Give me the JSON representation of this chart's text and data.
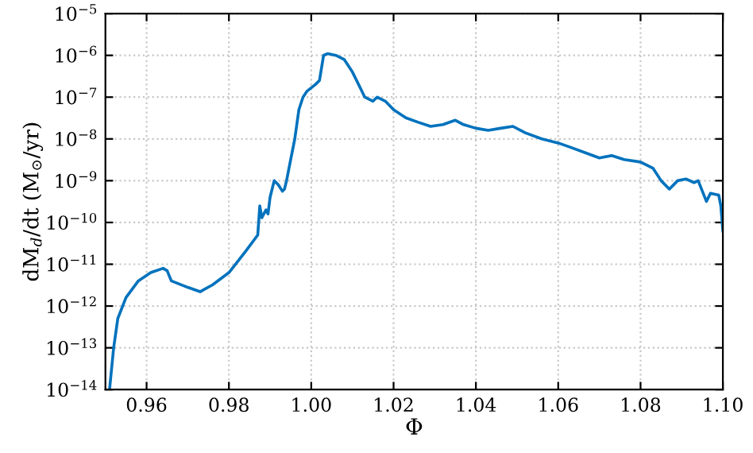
{
  "chart_data": {
    "type": "line",
    "xlabel": "Φ",
    "ylabel": "dM$_{d}$/dt (M$_{⊙}$/yr)",
    "log": "y",
    "grid": true,
    "line_style": "solid",
    "marker": "none",
    "xlim": [
      0.95,
      1.1
    ],
    "xticks": [
      {
        "value": 0.96,
        "label": "0.96"
      },
      {
        "value": 0.98,
        "label": "0.98"
      },
      {
        "value": 1.0,
        "label": "1.00"
      },
      {
        "value": 1.02,
        "label": "1.02"
      },
      {
        "value": 1.04,
        "label": "1.04"
      },
      {
        "value": 1.06,
        "label": "1.06"
      },
      {
        "value": 1.08,
        "label": "1.08"
      },
      {
        "value": 1.1,
        "label": "1.10"
      }
    ],
    "ylim": [
      1e-14,
      1e-05
    ],
    "yticks": [
      {
        "value": 1e-14,
        "label": "10$^{−14}$"
      },
      {
        "value": 1e-13,
        "label": "10$^{−13}$"
      },
      {
        "value": 1e-12,
        "label": "10$^{−12}$"
      },
      {
        "value": 1e-11,
        "label": "10$^{−11}$"
      },
      {
        "value": 1e-10,
        "label": "10$^{−10}$"
      },
      {
        "value": 1e-09,
        "label": "10$^{−9}$"
      },
      {
        "value": 1e-08,
        "label": "10$^{−8}$"
      },
      {
        "value": 1e-07,
        "label": "10$^{−7}$"
      },
      {
        "value": 1e-06,
        "label": "10$^{−6}$"
      },
      {
        "value": 1e-05,
        "label": "10$^{−5}$"
      }
    ],
    "series": [
      {
        "color": "#0072bd",
        "x": [
          0.951,
          0.952,
          0.953,
          0.955,
          0.958,
          0.961,
          0.964,
          0.965,
          0.966,
          0.97,
          0.973,
          0.976,
          0.98,
          0.984,
          0.987,
          0.9875,
          0.988,
          0.989,
          0.9895,
          0.99,
          0.991,
          0.992,
          0.993,
          0.9935,
          0.994,
          0.995,
          0.996,
          0.997,
          0.998,
          0.999,
          1.001,
          1.002,
          1.003,
          1.004,
          1.006,
          1.008,
          1.01,
          1.012,
          1.013,
          1.015,
          1.016,
          1.018,
          1.02,
          1.023,
          1.026,
          1.029,
          1.032,
          1.035,
          1.037,
          1.04,
          1.043,
          1.046,
          1.049,
          1.052,
          1.056,
          1.06,
          1.063,
          1.067,
          1.07,
          1.073,
          1.076,
          1.08,
          1.083,
          1.085,
          1.087,
          1.089,
          1.091,
          1.093,
          1.094,
          1.096,
          1.097,
          1.099,
          1.0995,
          1.1
        ],
        "values": [
          1e-14,
          1e-13,
          5e-13,
          1.6e-12,
          4e-12,
          6.3e-12,
          8e-12,
          7e-12,
          4e-12,
          2.8e-12,
          2.2e-12,
          3.2e-12,
          6.3e-12,
          2e-11,
          5e-11,
          2.5e-10,
          1.3e-10,
          2e-10,
          1.6e-10,
          4e-10,
          1e-09,
          8e-10,
          5.6e-10,
          6.3e-10,
          1e-09,
          3.2e-09,
          1e-08,
          5e-08,
          1e-07,
          1.4e-07,
          2e-07,
          2.5e-07,
          1e-06,
          1.1e-06,
          1e-06,
          8e-07,
          4e-07,
          1.6e-07,
          1e-07,
          8e-08,
          1e-07,
          8e-08,
          5e-08,
          3.2e-08,
          2.5e-08,
          2e-08,
          2.2e-08,
          2.8e-08,
          2.2e-08,
          1.8e-08,
          1.6e-08,
          1.8e-08,
          2e-08,
          1.4e-08,
          1e-08,
          8e-09,
          6.3e-09,
          4.5e-09,
          3.5e-09,
          4e-09,
          3.2e-09,
          2.8e-09,
          2e-09,
          1e-09,
          6.3e-10,
          1e-09,
          1.1e-09,
          9e-10,
          1e-09,
          3.2e-10,
          5e-10,
          4.5e-10,
          2.5e-10,
          6.3e-11
        ]
      }
    ]
  }
}
